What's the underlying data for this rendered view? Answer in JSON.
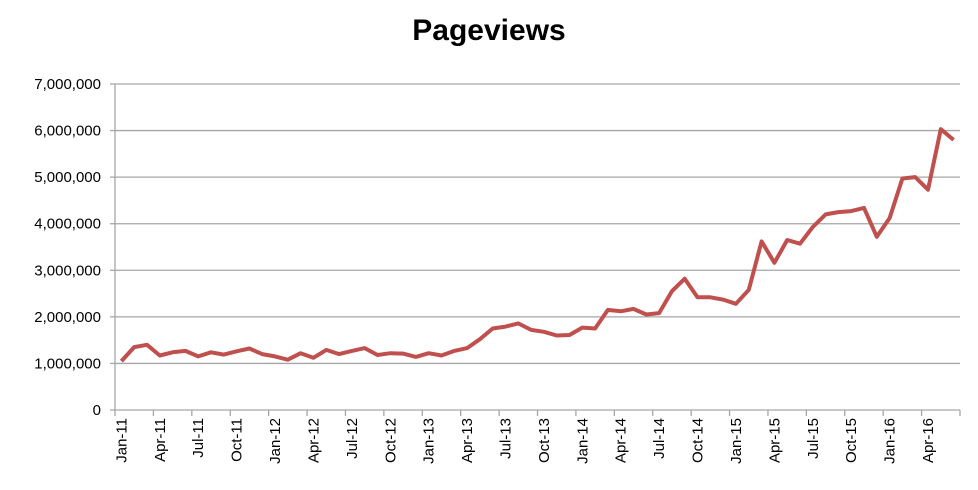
{
  "chart_data": {
    "type": "line",
    "title": "Pageviews",
    "xlabel": "",
    "ylabel": "",
    "ylim": [
      0,
      7000000
    ],
    "y_ticks": [
      "0",
      "1,000,000",
      "2,000,000",
      "3,000,000",
      "4,000,000",
      "5,000,000",
      "6,000,000",
      "7,000,000"
    ],
    "x_ticks": [
      "Jan-11",
      "Apr-11",
      "Jul-11",
      "Oct-11",
      "Jan-12",
      "Apr-12",
      "Jul-12",
      "Oct-12",
      "Jan-13",
      "Apr-13",
      "Jul-13",
      "Oct-13",
      "Jan-14",
      "Apr-14",
      "Jul-14",
      "Oct-14",
      "Jan-15",
      "Apr-15",
      "Jul-15",
      "Oct-15",
      "Jan-16",
      "Apr-16"
    ],
    "grid": "horizontal",
    "legend": "none",
    "line_color": "#c0504d",
    "series": [
      {
        "values": [
          1050000,
          1350000,
          1400000,
          1170000,
          1240000,
          1270000,
          1150000,
          1240000,
          1190000,
          1260000,
          1320000,
          1200000,
          1150000,
          1080000,
          1220000,
          1120000,
          1290000,
          1200000,
          1270000,
          1330000,
          1180000,
          1220000,
          1210000,
          1140000,
          1220000,
          1170000,
          1270000,
          1330000,
          1520000,
          1750000,
          1790000,
          1860000,
          1720000,
          1680000,
          1600000,
          1610000,
          1770000,
          1750000,
          2150000,
          2120000,
          2170000,
          2050000,
          2080000,
          2550000,
          2820000,
          2420000,
          2420000,
          2370000,
          2280000,
          2580000,
          3620000,
          3160000,
          3650000,
          3570000,
          3930000,
          4200000,
          4250000,
          4270000,
          4340000,
          3720000,
          4120000,
          4970000,
          5000000,
          4730000,
          6030000,
          5800000
        ]
      }
    ]
  }
}
